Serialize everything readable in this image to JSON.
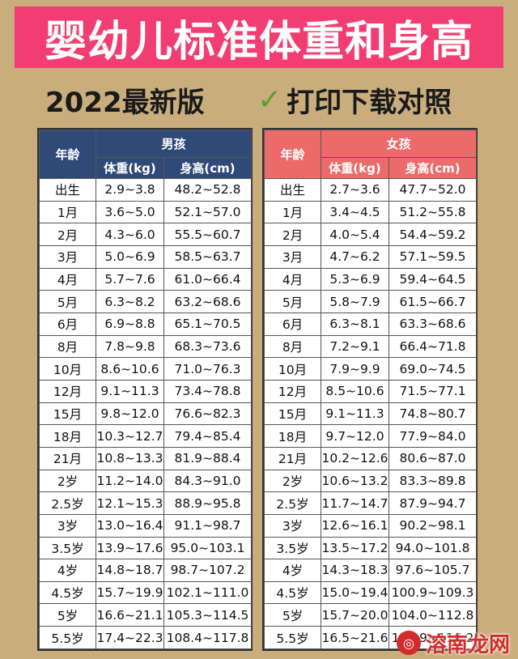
{
  "title": "婴幼儿标准体重和身高",
  "edition": "2022最新版",
  "print_hint": "打印下载对照",
  "colors": {
    "banner": "#f23d73",
    "boys_header": "#304a78",
    "girls_header": "#ec6a6a",
    "check": "#5aa02c"
  },
  "boys": {
    "group": "男孩",
    "col_age": "年龄",
    "col_weight": "体重(kg)",
    "col_height": "身高(cm)",
    "rows": [
      [
        "出生",
        "2.9~3.8",
        "48.2~52.8"
      ],
      [
        "1月",
        "3.6~5.0",
        "52.1~57.0"
      ],
      [
        "2月",
        "4.3~6.0",
        "55.5~60.7"
      ],
      [
        "3月",
        "5.0~6.9",
        "58.5~63.7"
      ],
      [
        "4月",
        "5.7~7.6",
        "61.0~66.4"
      ],
      [
        "5月",
        "6.3~8.2",
        "63.2~68.6"
      ],
      [
        "6月",
        "6.9~8.8",
        "65.1~70.5"
      ],
      [
        "8月",
        "7.8~9.8",
        "68.3~73.6"
      ],
      [
        "10月",
        "8.6~10.6",
        "71.0~76.3"
      ],
      [
        "12月",
        "9.1~11.3",
        "73.4~78.8"
      ],
      [
        "15月",
        "9.8~12.0",
        "76.6~82.3"
      ],
      [
        "18月",
        "10.3~12.7",
        "79.4~85.4"
      ],
      [
        "21月",
        "10.8~13.3",
        "81.9~88.4"
      ],
      [
        "2岁",
        "11.2~14.0",
        "84.3~91.0"
      ],
      [
        "2.5岁",
        "12.1~15.3",
        "88.9~95.8"
      ],
      [
        "3岁",
        "13.0~16.4",
        "91.1~98.7"
      ],
      [
        "3.5岁",
        "13.9~17.6",
        "95.0~103.1"
      ],
      [
        "4岁",
        "14.8~18.7",
        "98.7~107.2"
      ],
      [
        "4.5岁",
        "15.7~19.9",
        "102.1~111.0"
      ],
      [
        "5岁",
        "16.6~21.1",
        "105.3~114.5"
      ],
      [
        "5.5岁",
        "17.4~22.3",
        "108.4~117.8"
      ]
    ]
  },
  "girls": {
    "group": "女孩",
    "col_age": "年龄",
    "col_weight": "体重(kg)",
    "col_height": "身高(cm)",
    "rows": [
      [
        "出生",
        "2.7~3.6",
        "47.7~52.0"
      ],
      [
        "1月",
        "3.4~4.5",
        "51.2~55.8"
      ],
      [
        "2月",
        "4.0~5.4",
        "54.4~59.2"
      ],
      [
        "3月",
        "4.7~6.2",
        "57.1~59.5"
      ],
      [
        "4月",
        "5.3~6.9",
        "59.4~64.5"
      ],
      [
        "5月",
        "5.8~7.9",
        "61.5~66.7"
      ],
      [
        "6月",
        "6.3~8.1",
        "63.3~68.6"
      ],
      [
        "8月",
        "7.2~9.1",
        "66.4~71.8"
      ],
      [
        "10月",
        "7.9~9.9",
        "69.0~74.5"
      ],
      [
        "12月",
        "8.5~10.6",
        "71.5~77.1"
      ],
      [
        "15月",
        "9.1~11.3",
        "74.8~80.7"
      ],
      [
        "18月",
        "9.7~12.0",
        "77.9~84.0"
      ],
      [
        "21月",
        "10.2~12.6",
        "80.6~87.0"
      ],
      [
        "2岁",
        "10.6~13.2",
        "83.3~89.8"
      ],
      [
        "2.5岁",
        "11.7~14.7",
        "87.9~94.7"
      ],
      [
        "3岁",
        "12.6~16.1",
        "90.2~98.1"
      ],
      [
        "3.5岁",
        "13.5~17.2",
        "94.0~101.8"
      ],
      [
        "4岁",
        "14.3~18.3",
        "97.6~105.7"
      ],
      [
        "4.5岁",
        "15.0~19.4",
        "100.9~109.3"
      ],
      [
        "5岁",
        "15.7~20.0",
        "104.0~112.8"
      ],
      [
        "5.5岁",
        "16.5~21.6",
        "106.9~116.2"
      ]
    ]
  },
  "watermark": {
    "text": "溶南龙网"
  }
}
